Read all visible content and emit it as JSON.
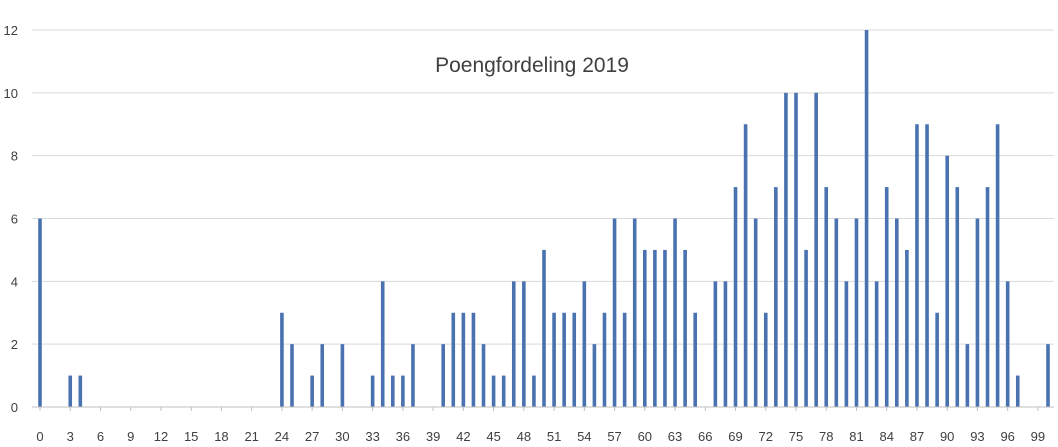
{
  "chart_data": {
    "type": "bar",
    "title": "Poengfordeling 2019",
    "xlabel": "",
    "ylabel": "",
    "ylim": [
      0,
      12
    ],
    "y_ticks": [
      0,
      2,
      4,
      6,
      8,
      10,
      12
    ],
    "x_tick_labels": [
      0,
      3,
      6,
      9,
      12,
      15,
      18,
      21,
      24,
      27,
      30,
      33,
      36,
      39,
      42,
      45,
      48,
      51,
      54,
      57,
      60,
      63,
      66,
      69,
      72,
      75,
      78,
      81,
      84,
      87,
      90,
      93,
      96,
      99
    ],
    "grid": "horizontal",
    "color": "#4a72b0",
    "categories": [
      0,
      1,
      2,
      3,
      4,
      5,
      6,
      7,
      8,
      9,
      10,
      11,
      12,
      13,
      14,
      15,
      16,
      17,
      18,
      19,
      20,
      21,
      22,
      23,
      24,
      25,
      26,
      27,
      28,
      29,
      30,
      31,
      32,
      33,
      34,
      35,
      36,
      37,
      38,
      39,
      40,
      41,
      42,
      43,
      44,
      45,
      46,
      47,
      48,
      49,
      50,
      51,
      52,
      53,
      54,
      55,
      56,
      57,
      58,
      59,
      60,
      61,
      62,
      63,
      64,
      65,
      66,
      67,
      68,
      69,
      70,
      71,
      72,
      73,
      74,
      75,
      76,
      77,
      78,
      79,
      80,
      81,
      82,
      83,
      84,
      85,
      86,
      87,
      88,
      89,
      90,
      91,
      92,
      93,
      94,
      95,
      96,
      97,
      98,
      99,
      100
    ],
    "values": [
      6,
      0,
      0,
      1,
      1,
      0,
      0,
      0,
      0,
      0,
      0,
      0,
      0,
      0,
      0,
      0,
      0,
      0,
      0,
      0,
      0,
      0,
      0,
      0,
      3,
      2,
      0,
      1,
      2,
      0,
      2,
      0,
      0,
      1,
      4,
      1,
      1,
      2,
      0,
      0,
      2,
      3,
      3,
      3,
      2,
      1,
      1,
      4,
      4,
      1,
      5,
      3,
      3,
      3,
      4,
      2,
      3,
      6,
      3,
      6,
      5,
      5,
      5,
      6,
      5,
      3,
      0,
      4,
      4,
      7,
      9,
      6,
      3,
      7,
      10,
      10,
      5,
      10,
      7,
      6,
      4,
      6,
      12,
      4,
      7,
      6,
      5,
      9,
      9,
      3,
      8,
      7,
      2,
      6,
      7,
      9,
      4,
      1,
      0,
      0,
      2
    ]
  }
}
